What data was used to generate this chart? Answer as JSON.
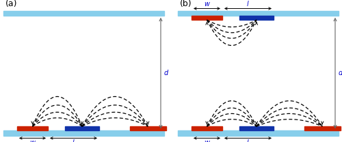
{
  "fig_width": 5.0,
  "fig_height": 2.08,
  "dpi": 100,
  "bg_color": "#ffffff",
  "cyan_color": "#87CEEB",
  "red_color": "#CC2200",
  "blue_color": "#1133AA",
  "arrow_color": "#666666",
  "dim_color": "#0000CC",
  "label_a": "(a)",
  "label_b": "(b)",
  "label_d": "d",
  "label_w": "w",
  "label_l": "l",
  "font_size_label": 9,
  "font_size_dim": 7
}
